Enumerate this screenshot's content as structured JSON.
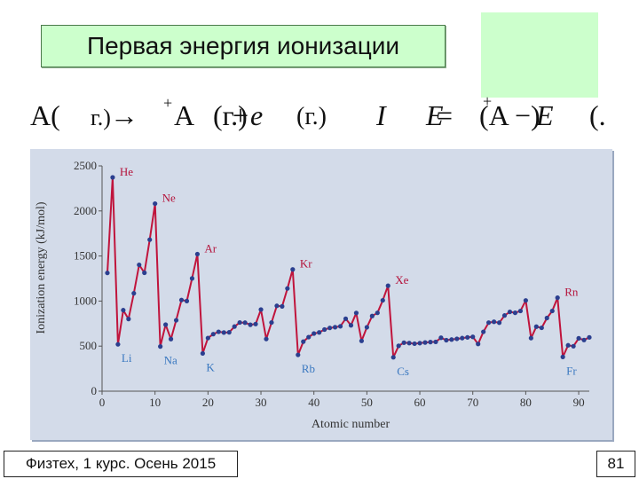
{
  "slide": {
    "title": "Первая энергия ионизации",
    "footer_left": "Физтех, 1 курс. Осень 2015",
    "page_number": "81"
  },
  "equation": {
    "tokens": [
      "A(",
      "г.)",
      "→",
      "+",
      "A",
      "(г.)",
      "+",
      "e",
      "(г.)",
      "I",
      "E",
      "=",
      "+",
      "(A",
      "−)",
      "E",
      "(."
    ]
  },
  "chart_data": {
    "type": "line",
    "title": "",
    "xlabel": "Atomic number",
    "ylabel": "Ionization energy (kJ/mol)",
    "xlim": [
      0,
      92
    ],
    "ylim": [
      0,
      2500
    ],
    "xticks": [
      0,
      10,
      20,
      30,
      40,
      50,
      60,
      70,
      80,
      90
    ],
    "yticks": [
      0,
      500,
      1000,
      1500,
      2000,
      2500
    ],
    "grid": false,
    "legend": "none",
    "colors": {
      "line": "#c0143c",
      "point": "#2b3f8f",
      "label": "#b4143c",
      "alkali_label": "#3a78c0",
      "axis_text": "#333333"
    },
    "series": [
      {
        "x": [
          1,
          2,
          3,
          4,
          5,
          6,
          7,
          8,
          9,
          10,
          11,
          12,
          13,
          14,
          15,
          16,
          17,
          18,
          19,
          20,
          21,
          22,
          23,
          24,
          25,
          26,
          27,
          28,
          29,
          30,
          31,
          32,
          33,
          34,
          35,
          36,
          37,
          38,
          39,
          40,
          41,
          42,
          43,
          44,
          45,
          46,
          47,
          48,
          49,
          50,
          51,
          52,
          53,
          54,
          55,
          56,
          57,
          58,
          59,
          60,
          61,
          62,
          63,
          64,
          65,
          66,
          67,
          68,
          69,
          70,
          71,
          72,
          73,
          74,
          75,
          76,
          77,
          78,
          79,
          80,
          81,
          82,
          83,
          84,
          85,
          86,
          87,
          88,
          89,
          90,
          91,
          92
        ],
        "values": [
          1312,
          2372,
          520,
          899,
          801,
          1086,
          1402,
          1314,
          1681,
          2081,
          496,
          738,
          578,
          787,
          1012,
          1000,
          1251,
          1521,
          419,
          590,
          633,
          659,
          651,
          653,
          717,
          762,
          760,
          737,
          745,
          906,
          579,
          762,
          947,
          941,
          1140,
          1351,
          403,
          550,
          600,
          640,
          652,
          684,
          702,
          710,
          720,
          804,
          731,
          868,
          558,
          709,
          834,
          869,
          1008,
          1170,
          376,
          503,
          538,
          534,
          527,
          533,
          540,
          545,
          547,
          593,
          566,
          573,
          581,
          589,
          597,
          603,
          524,
          659,
          761,
          770,
          760,
          840,
          880,
          870,
          890,
          1007,
          589,
          716,
          703,
          812,
          890,
          1037,
          380,
          509,
          499,
          587,
          568,
          597
        ]
      }
    ],
    "annotations": [
      {
        "text": "He",
        "x": 2,
        "y": 2372
      },
      {
        "text": "Ne",
        "x": 10,
        "y": 2081
      },
      {
        "text": "Ar",
        "x": 18,
        "y": 1521
      },
      {
        "text": "Kr",
        "x": 36,
        "y": 1351
      },
      {
        "text": "Xe",
        "x": 54,
        "y": 1170
      },
      {
        "text": "Rn",
        "x": 86,
        "y": 1037
      },
      {
        "text": "Li",
        "x": 3,
        "y": 520
      },
      {
        "text": "Na",
        "x": 11,
        "y": 496
      },
      {
        "text": "K",
        "x": 19,
        "y": 419
      },
      {
        "text": "Rb",
        "x": 37,
        "y": 403
      },
      {
        "text": "Cs",
        "x": 55,
        "y": 376
      },
      {
        "text": "Fr",
        "x": 87,
        "y": 380
      }
    ]
  }
}
